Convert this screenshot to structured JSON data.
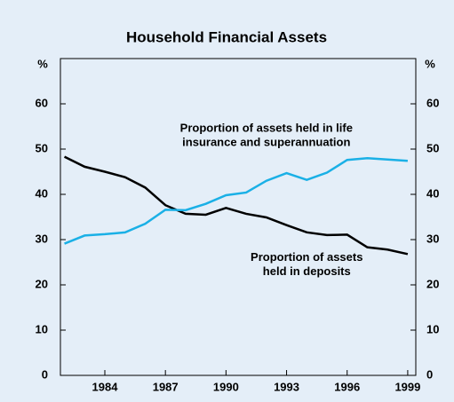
{
  "chart_data": {
    "type": "line",
    "title": "Household Financial Assets",
    "y_unit": "%",
    "y2_unit": "%",
    "x": [
      1982,
      1983,
      1984,
      1985,
      1986,
      1987,
      1988,
      1989,
      1990,
      1991,
      1992,
      1993,
      1994,
      1995,
      1996,
      1997,
      1998,
      1999
    ],
    "series": [
      {
        "name": "Proportion of assets held in deposits",
        "color": "#000000",
        "values": [
          48.3,
          46.1,
          45.0,
          43.8,
          41.5,
          37.6,
          35.7,
          35.5,
          37.0,
          35.7,
          34.9,
          33.2,
          31.6,
          31.0,
          31.1,
          28.3,
          27.8,
          26.8
        ]
      },
      {
        "name": "Proportion of assets held in life insurance and superannuation",
        "color": "#1ab0e6",
        "values": [
          29.1,
          30.9,
          31.2,
          31.6,
          33.5,
          36.6,
          36.5,
          37.9,
          39.8,
          40.4,
          43.0,
          44.7,
          43.2,
          44.8,
          47.6,
          48.0,
          47.7,
          47.4
        ]
      }
    ],
    "annotations": [
      {
        "lines": [
          "Proportion of assets held in life",
          "insurance and superannuation"
        ],
        "x": 1992,
        "y": 54.5
      },
      {
        "lines": [
          "Proportion of assets",
          "held in deposits"
        ],
        "x": 1994,
        "y": 26
      }
    ],
    "xlim": [
      1981.8,
      1999.4
    ],
    "xticks": [
      1984,
      1987,
      1990,
      1993,
      1996,
      1999
    ],
    "ylim": [
      0,
      70
    ],
    "yticks": [
      0,
      10,
      20,
      30,
      40,
      50,
      60
    ],
    "y2lim": [
      0,
      70
    ],
    "y2ticks": [
      0,
      10,
      20,
      30,
      40,
      50,
      60
    ],
    "background": "#e4eef8"
  }
}
